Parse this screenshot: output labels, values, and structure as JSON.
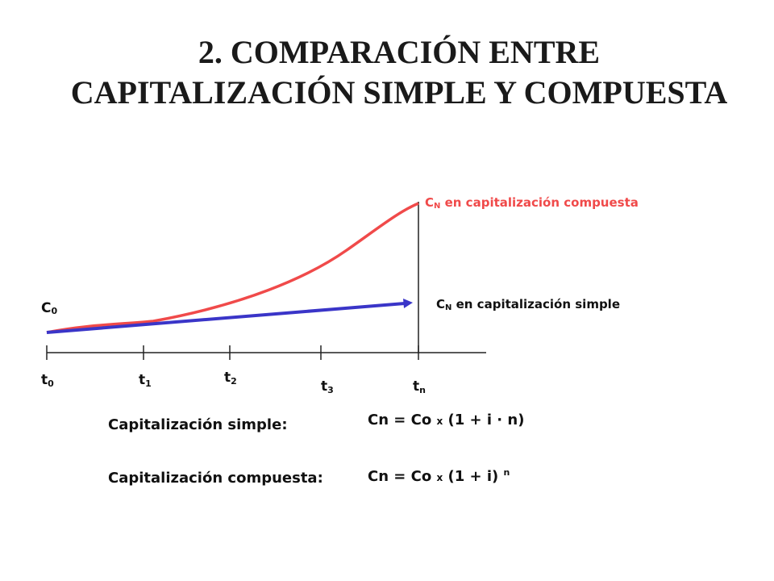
{
  "title": {
    "line1": "2. COMPARACIÓN ENTRE",
    "line2": "CAPITALIZACIÓN SIMPLE Y COMPUESTA"
  },
  "diagram": {
    "labels": {
      "c0": {
        "base": "C",
        "sub": "0"
      },
      "compound": {
        "base": "C",
        "sub": "N",
        "text": " en capitalización compuesta"
      },
      "simple": {
        "base": "C",
        "sub": "N",
        "text": " en capitalización simple"
      }
    },
    "ticks": [
      {
        "base": "t",
        "sub": "0"
      },
      {
        "base": "t",
        "sub": "1"
      },
      {
        "base": "t",
        "sub": "2"
      },
      {
        "base": "t",
        "sub": "3"
      },
      {
        "base": "t",
        "sub": "n"
      }
    ],
    "colors": {
      "compound": "#f04a4a",
      "simple": "#3a35c8",
      "axis": "#222222"
    }
  },
  "formulas": {
    "simple": {
      "label": "Capitalización simple:",
      "prefix": "Cn = Co ",
      "x": "x",
      "suffix": " (1 + i · n)"
    },
    "compound": {
      "label": "Capitalización compuesta:",
      "prefix": "Cn = Co ",
      "x": "x",
      "suffix": " (1 + i) ",
      "exponent": "n"
    }
  }
}
